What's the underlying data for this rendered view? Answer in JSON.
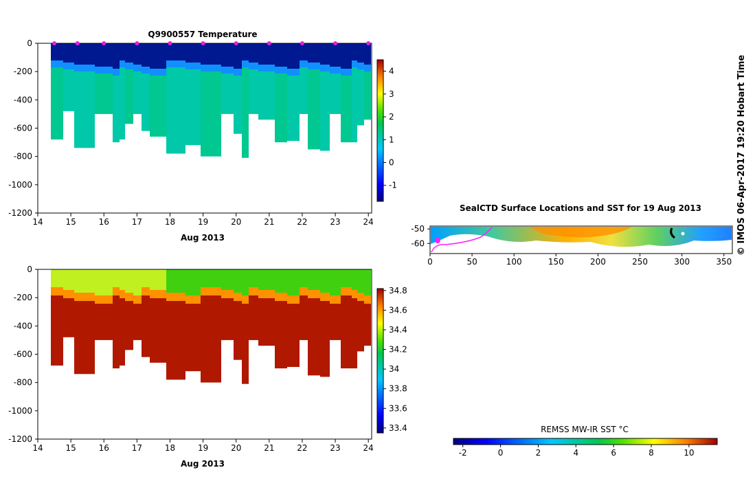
{
  "side_label": "© IMOS 06-Apr-2017 19:20 Hobart Time",
  "chart_data": [
    {
      "type": "heatmap",
      "title": "Q9900557  Temperature",
      "xlabel": "Aug 2013",
      "ylabel": "",
      "xlim": [
        14,
        24.1
      ],
      "ylim": [
        -1200,
        0
      ],
      "x_ticks": [
        "14",
        "15",
        "16",
        "17",
        "18",
        "19",
        "20",
        "21",
        "22",
        "23",
        "24"
      ],
      "y_ticks": [
        "0",
        "-200",
        "-400",
        "-600",
        "-800",
        "-1000",
        "-1200"
      ],
      "profile_times": [
        14.5,
        15.2,
        16.0,
        17.0,
        18.0,
        19.0,
        20.0,
        21.0,
        22.0,
        23.0,
        24.0
      ],
      "colorbar": {
        "min": -1.7,
        "max": 4.5,
        "ticks": [
          "-1",
          "0",
          "1",
          "2",
          "3",
          "4"
        ]
      },
      "note": "Cold (~-1.5 °C) surface layer to ~150 m over ~1.2 °C water below"
    },
    {
      "type": "heatmap",
      "title": "",
      "xlabel": "Aug 2013",
      "ylabel": "",
      "xlim": [
        14,
        24.1
      ],
      "ylim": [
        -1200,
        0
      ],
      "x_ticks": [
        "14",
        "15",
        "16",
        "17",
        "18",
        "19",
        "20",
        "21",
        "22",
        "23",
        "24"
      ],
      "y_ticks": [
        "0",
        "-200",
        "-400",
        "-600",
        "-800",
        "-1000",
        "-1200"
      ],
      "colorbar": {
        "min": 33.35,
        "max": 34.82,
        "ticks": [
          "33.4",
          "33.6",
          "33.8",
          "34",
          "34.2",
          "34.4",
          "34.6",
          "34.8"
        ]
      },
      "note": "Fresh (~34.0-34.2) surface layer over ~34.7 deep water"
    },
    {
      "type": "map",
      "title": "SealCTD Surface Locations and SST for 19 Aug 2013",
      "xlim": [
        0,
        360
      ],
      "ylim": [
        -67,
        -48
      ],
      "x_ticks": [
        "0",
        "50",
        "100",
        "150",
        "200",
        "250",
        "300",
        "350"
      ],
      "y_ticks": [
        "-50",
        "-60"
      ]
    },
    {
      "type": "colorbar",
      "title": "REMSS MW-IR SST °C",
      "min": -2.5,
      "max": 11.5,
      "ticks": [
        "-2",
        "0",
        "2",
        "4",
        "6",
        "8",
        "10"
      ]
    }
  ]
}
